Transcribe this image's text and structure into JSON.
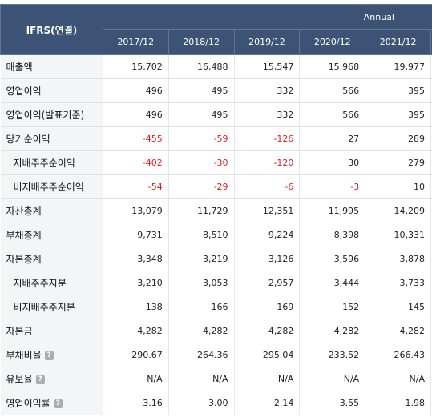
{
  "header": {
    "ifrs_label": "IFRS(연결)",
    "period_label": "Annual",
    "years": [
      "2017/12",
      "2018/12",
      "2019/12",
      "2020/12",
      "2021/12"
    ],
    "overflow_year": "2"
  },
  "rows": [
    {
      "label": "매출액",
      "sub": false,
      "help": false,
      "values": [
        "15,702",
        "16,488",
        "15,547",
        "15,968",
        "19,977"
      ],
      "overflow": ""
    },
    {
      "label": "영업이익",
      "sub": false,
      "help": false,
      "values": [
        "496",
        "495",
        "332",
        "566",
        "395"
      ],
      "overflow": ""
    },
    {
      "label": "영업이익(발표기준)",
      "sub": false,
      "help": false,
      "values": [
        "496",
        "495",
        "332",
        "566",
        "395"
      ],
      "overflow": ""
    },
    {
      "label": "당기순이익",
      "sub": false,
      "help": false,
      "values": [
        "-455",
        "-59",
        "-126",
        "27",
        "289"
      ],
      "overflow": ""
    },
    {
      "label": "지배주주순이익",
      "sub": true,
      "help": false,
      "values": [
        "-402",
        "-30",
        "-120",
        "30",
        "279"
      ],
      "overflow": ""
    },
    {
      "label": "비지배주주순이익",
      "sub": true,
      "help": false,
      "values": [
        "-54",
        "-29",
        "-6",
        "-3",
        "10"
      ],
      "overflow": ""
    },
    {
      "label": "자산총계",
      "sub": false,
      "help": false,
      "values": [
        "13,079",
        "11,729",
        "12,351",
        "11,995",
        "14,209"
      ],
      "overflow": ""
    },
    {
      "label": "부채총계",
      "sub": false,
      "help": false,
      "values": [
        "9,731",
        "8,510",
        "9,224",
        "8,398",
        "10,331"
      ],
      "overflow": ""
    },
    {
      "label": "자본총계",
      "sub": false,
      "help": false,
      "values": [
        "3,348",
        "3,219",
        "3,126",
        "3,596",
        "3,878"
      ],
      "overflow": ""
    },
    {
      "label": "지배주주지분",
      "sub": true,
      "help": false,
      "values": [
        "3,210",
        "3,053",
        "2,957",
        "3,444",
        "3,733"
      ],
      "overflow": ""
    },
    {
      "label": "비지배주주지분",
      "sub": true,
      "help": false,
      "values": [
        "138",
        "166",
        "169",
        "152",
        "145"
      ],
      "overflow": ""
    },
    {
      "label": "자본금",
      "sub": false,
      "help": false,
      "values": [
        "4,282",
        "4,282",
        "4,282",
        "4,282",
        "4,282"
      ],
      "overflow": ""
    },
    {
      "label": "부채비율",
      "sub": false,
      "help": true,
      "values": [
        "290.67",
        "264.36",
        "295.04",
        "233.52",
        "266.43"
      ],
      "overflow": ""
    },
    {
      "label": "유보율",
      "sub": false,
      "help": true,
      "values": [
        "N/A",
        "N/A",
        "N/A",
        "N/A",
        "N/A"
      ],
      "overflow": ""
    },
    {
      "label": "영업이익률",
      "sub": false,
      "help": true,
      "values": [
        "3.16",
        "3.00",
        "2.14",
        "3.55",
        "1.98"
      ],
      "overflow": ""
    }
  ],
  "help_glyph": "?",
  "colors": {
    "header_bg": "#3c5375",
    "label_bg": "#f4f5f7",
    "negative": "#e02020"
  }
}
